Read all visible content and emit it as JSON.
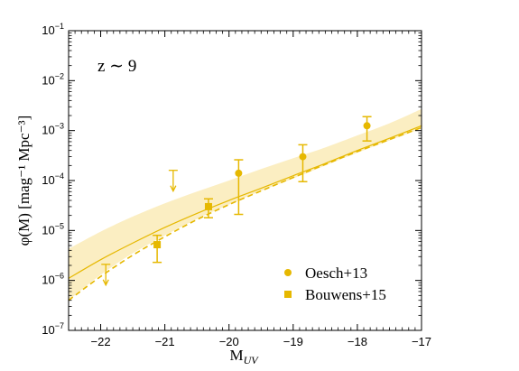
{
  "chart_data": {
    "type": "scatter",
    "title": "",
    "xlabel": "M",
    "xlabel_sub": "UV",
    "ylabel": "φ(M)  [mag⁻¹ Mpc⁻³]",
    "annotation": "z ∼ 9",
    "xlim": [
      -22.5,
      -17
    ],
    "ylim": [
      1e-07,
      0.1
    ],
    "yscale": "log",
    "grid": false,
    "legend_position": "bottom-right",
    "accent_color": "#e6b800",
    "band_color": "#fbeec2",
    "x_ticks": [
      {
        "value": -22,
        "label": "−22"
      },
      {
        "value": -21,
        "label": "−21"
      },
      {
        "value": -20,
        "label": "−20"
      },
      {
        "value": -19,
        "label": "−19"
      },
      {
        "value": -18,
        "label": "−18"
      },
      {
        "value": -17,
        "label": "−17"
      }
    ],
    "y_ticks": [
      {
        "value": 1e-07,
        "base": "10",
        "exp": "−7"
      },
      {
        "value": 1e-06,
        "base": "10",
        "exp": "−6"
      },
      {
        "value": 1e-05,
        "base": "10",
        "exp": "−5"
      },
      {
        "value": 0.0001,
        "base": "10",
        "exp": "−4"
      },
      {
        "value": 0.001,
        "base": "10",
        "exp": "−3"
      },
      {
        "value": 0.01,
        "base": "10",
        "exp": "−2"
      },
      {
        "value": 0.1,
        "base": "10",
        "exp": "−1"
      }
    ],
    "series": [
      {
        "name": "Oesch+13",
        "marker": "circle",
        "points": [
          {
            "x": -19.85,
            "y": 0.00014,
            "ylo": 2.1e-05,
            "yhi": 0.00026
          },
          {
            "x": -18.85,
            "y": 0.0003,
            "ylo": 9.5e-05,
            "yhi": 0.00052
          },
          {
            "x": -17.85,
            "y": 0.00125,
            "ylo": 0.00062,
            "yhi": 0.0019
          }
        ]
      },
      {
        "name": "Bouwens+15",
        "marker": "square",
        "points": [
          {
            "x": -21.12,
            "y": 5.2e-06,
            "ylo": 2.3e-06,
            "yhi": 8e-06
          },
          {
            "x": -20.32,
            "y": 3e-05,
            "ylo": 1.8e-05,
            "yhi": 4.3e-05
          }
        ]
      }
    ],
    "upper_limits": [
      {
        "x": -21.92,
        "y": 2.1e-06
      },
      {
        "x": -20.87,
        "y": 0.00016
      }
    ],
    "model_solid": {
      "x": [
        -22.5,
        -22,
        -21.5,
        -21,
        -20.5,
        -20,
        -19.5,
        -19,
        -18.5,
        -18,
        -17.5,
        -17
      ],
      "y": [
        1.1e-06,
        2.6e-06,
        5.6e-06,
        1.15e-05,
        2.2e-05,
        4e-05,
        7e-05,
        0.000125,
        0.00022,
        0.0004,
        0.0007,
        0.00125
      ]
    },
    "model_dashed": {
      "x": [
        -22.5,
        -22,
        -21.5,
        -21,
        -20.5,
        -20,
        -19.5,
        -19,
        -18.5,
        -18,
        -17.5,
        -17
      ],
      "y": [
        4e-07,
        1.2e-06,
        3.2e-06,
        7.5e-06,
        1.65e-05,
        3.3e-05,
        6.2e-05,
        0.000115,
        0.00021,
        0.00038,
        0.00066,
        0.00115
      ]
    },
    "model_band": {
      "x": [
        -22.5,
        -22,
        -21.5,
        -21,
        -20.5,
        -20,
        -19.5,
        -19,
        -18.5,
        -18,
        -17.5,
        -17
      ],
      "lo": [
        4e-07,
        1.3e-06,
        3.5e-06,
        8e-06,
        1.7e-05,
        3.3e-05,
        6.2e-05,
        0.00011,
        0.0002,
        0.00036,
        0.00063,
        0.0011
      ],
      "hi": [
        4.3e-06,
        9.5e-06,
        1.9e-05,
        3.5e-05,
        6e-05,
        0.0001,
        0.00017,
        0.00028,
        0.00046,
        0.0008,
        0.0014,
        0.0027
      ]
    }
  }
}
